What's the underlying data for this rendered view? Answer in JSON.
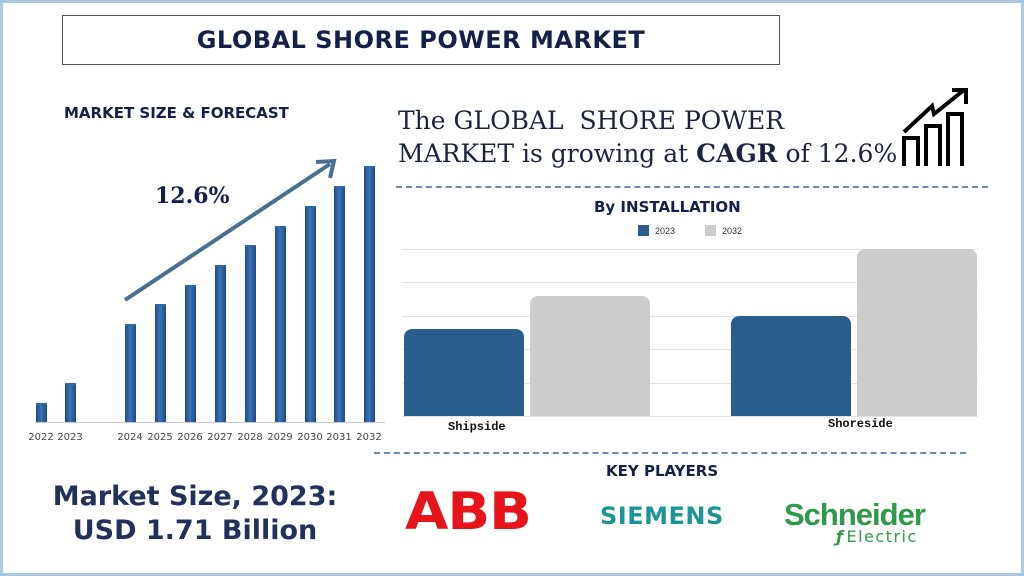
{
  "header": {
    "title": "GLOBAL SHORE POWER MARKET"
  },
  "left_section": {
    "heading": "MARKET SIZE & FORECAST",
    "cagr_label": "12.6%"
  },
  "summary": {
    "line1": "The GLOBAL  SHORE POWER",
    "line2_prefix": "MARKET is growing at ",
    "line2_bold": "CAGR",
    "line2_suffix": " of 12.6%",
    "icon": "growth-chart-icon"
  },
  "installation": {
    "heading": "By INSTALLATION",
    "legend": [
      {
        "label": "2023",
        "color": "#295d8c"
      },
      {
        "label": "2032",
        "color": "#cccccc"
      }
    ]
  },
  "market_size": {
    "line1": "Market Size, 2023:",
    "line2": "USD 1.71 Billion"
  },
  "key_players": {
    "heading": "KEY PLAYERS",
    "logos": [
      {
        "name": "ABB",
        "color": "#e8141c"
      },
      {
        "name": "SIEMENS",
        "color": "#1a9598"
      },
      {
        "name": "Schneider",
        "sub": "Electric",
        "color": "#2e9a48"
      }
    ]
  },
  "chart_data": [
    {
      "type": "bar",
      "title": "MARKET SIZE & FORECAST",
      "categories": [
        "2022",
        "2023",
        "2024",
        "2025",
        "2026",
        "2027",
        "2028",
        "2029",
        "2030",
        "2031",
        "2032"
      ],
      "values": [
        19,
        39,
        98,
        118,
        137,
        157,
        177,
        196,
        216,
        236,
        256
      ],
      "value_units": "relative bar height (no axis shown)",
      "annotation": "12.6% (CAGR arrow 2024→2032)",
      "color": "#2a5f9e",
      "grid": false,
      "xlabel": "",
      "ylabel": ""
    },
    {
      "type": "bar",
      "title": "By INSTALLATION",
      "categories": [
        "Shipside",
        "Shoreside"
      ],
      "series": [
        {
          "name": "2023",
          "values": [
            2.6,
            3.0
          ],
          "color": "#295d8c"
        },
        {
          "name": "2032",
          "values": [
            3.6,
            5.0
          ],
          "color": "#cccccc"
        }
      ],
      "ylim": [
        0,
        5
      ],
      "value_units": "relative (gridline units, no axis labels shown)",
      "grid": true,
      "legend_position": "top"
    }
  ]
}
